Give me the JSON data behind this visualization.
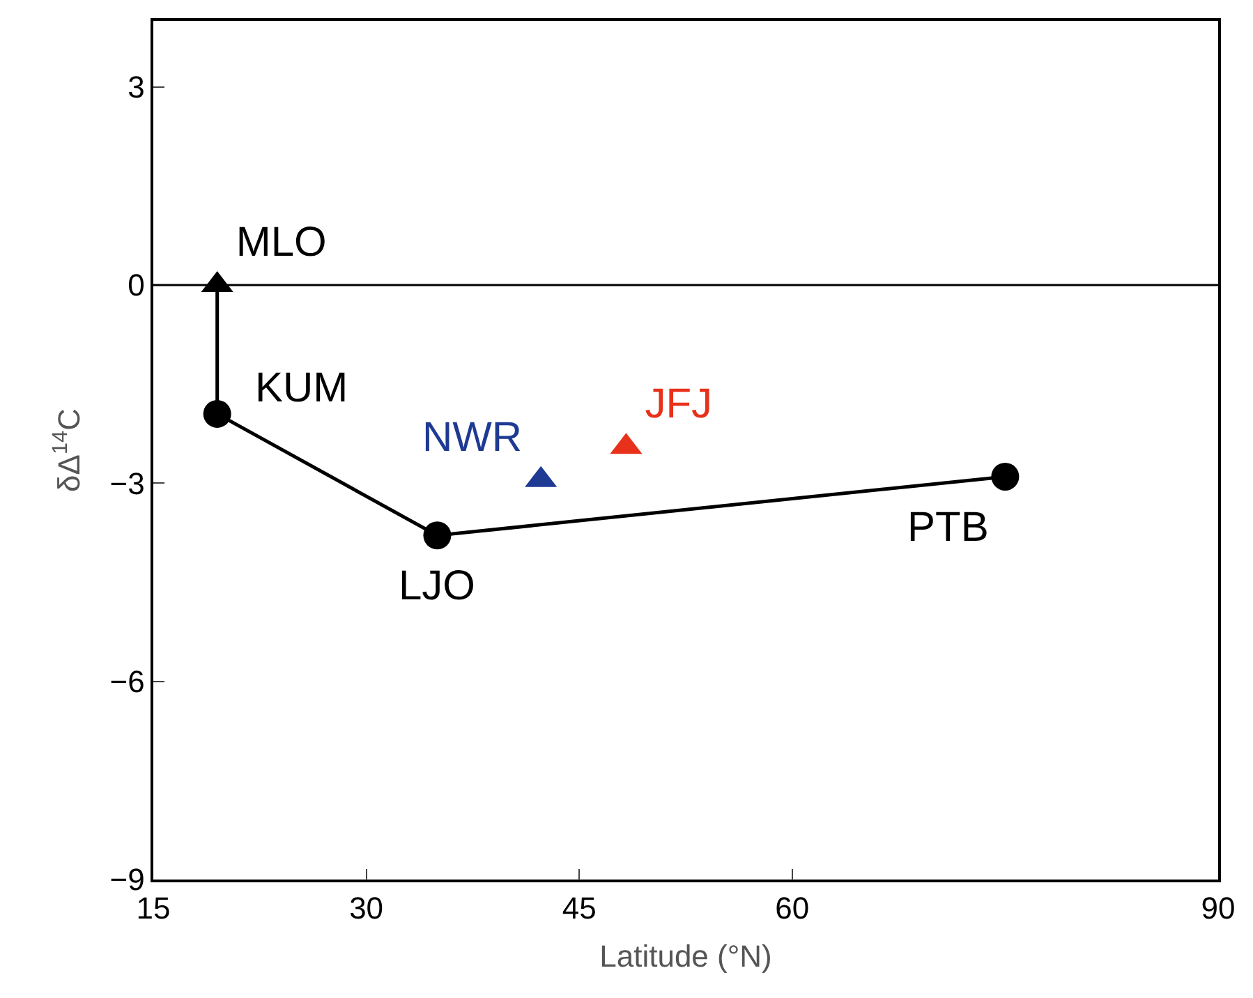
{
  "chart_data": {
    "type": "line",
    "xlabel": "Latitude (°N)",
    "ylabel": "δΔ$^{14}$C",
    "xlim": [
      15,
      90
    ],
    "xticks": [
      15,
      30,
      45,
      60,
      90
    ],
    "ylim": [
      -9,
      4
    ],
    "yticks": [
      -9,
      -6,
      -3,
      0,
      3
    ],
    "series": [
      {
        "color": "#000000",
        "x": [
          19.5,
          19.5
        ],
        "values": [
          0,
          -1.95
        ]
      },
      {
        "color": "#000000",
        "x": [
          19.5,
          35,
          75
        ],
        "values": [
          -1.95,
          -3.79,
          -2.9
        ],
        "marker": "circle"
      },
      {
        "type": "scatter",
        "name": "MLO",
        "color": "#000000",
        "x": [
          19.5
        ],
        "values": [
          0
        ],
        "marker": "triangle"
      },
      {
        "type": "scatter",
        "name": "NWR",
        "color": "#1f3a93",
        "x": [
          42.3
        ],
        "values": [
          -2.95
        ],
        "marker": "triangle"
      },
      {
        "type": "scatter",
        "name": "JFJ",
        "color": "#e8311a",
        "x": [
          48.3
        ],
        "values": [
          -2.45
        ],
        "marker": "triangle"
      }
    ],
    "annotations": [
      {
        "text": "KUM",
        "x": 19.5,
        "y": -1.95
      },
      {
        "text": "LJO",
        "x": 35,
        "y": -3.79
      },
      {
        "text": "PTB",
        "x": 75,
        "y": -2.9
      }
    ],
    "ref_lines": [
      {
        "axis": "y",
        "value": 0,
        "color": "#000000"
      }
    ]
  }
}
